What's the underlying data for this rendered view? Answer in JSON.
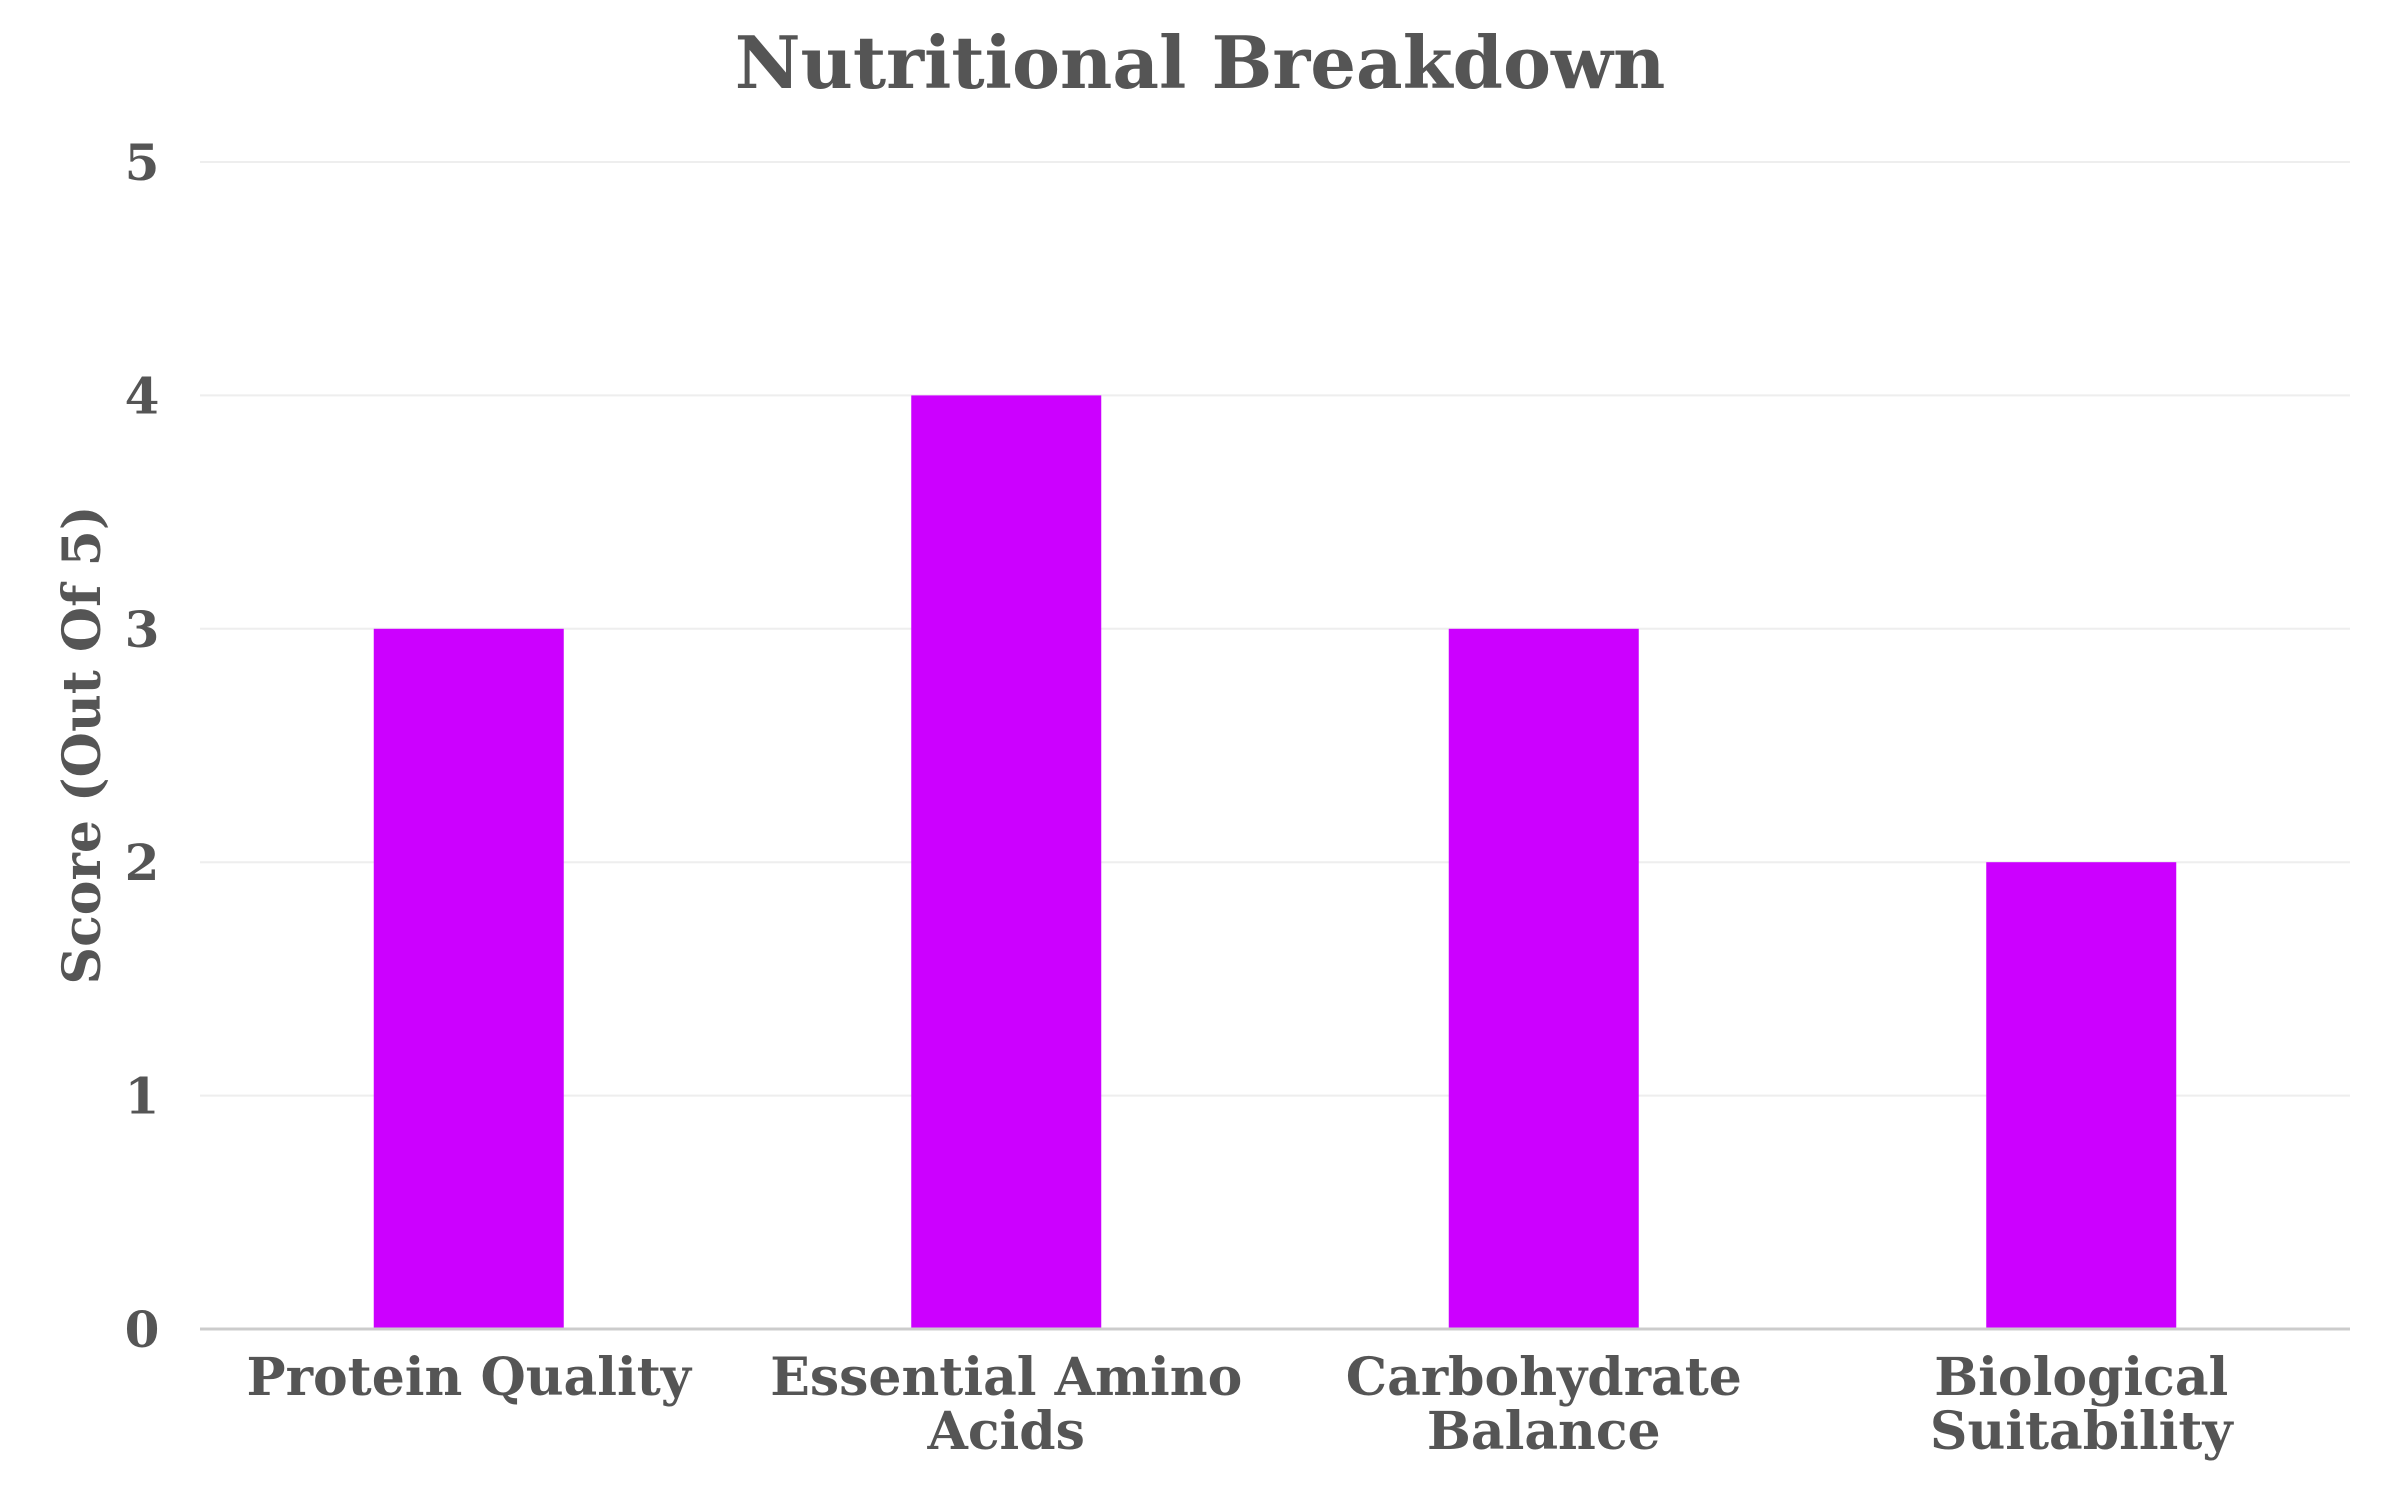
{
  "chart_data": {
    "type": "bar",
    "title": "Nutritional Breakdown",
    "xlabel": "",
    "ylabel": "Score (Out Of 5)",
    "ylim": [
      0,
      5
    ],
    "yticks": [
      0,
      1,
      2,
      3,
      4,
      5
    ],
    "grid": true,
    "legend": "none",
    "categories": [
      [
        "Protein Quality"
      ],
      [
        "Essential Amino",
        "Acids"
      ],
      [
        "Carbohydrate",
        "Balance"
      ],
      [
        "Biological",
        "Suitability"
      ]
    ],
    "values": [
      3,
      4,
      3,
      2
    ],
    "bar_color": "#cc00ff"
  }
}
